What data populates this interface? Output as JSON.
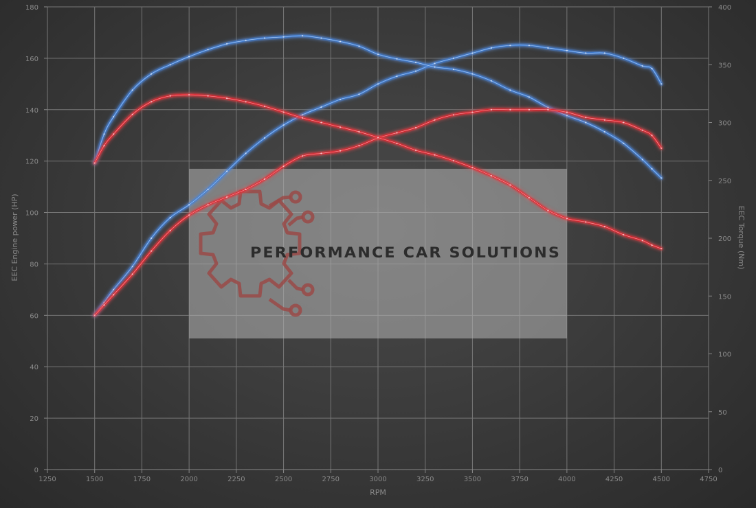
{
  "chart_data": {
    "type": "line",
    "xlabel": "RPM",
    "ylabel_left": "EEC Engine power (HP)",
    "ylabel_right": "EEC Torque (Nm)",
    "xlim": [
      1250,
      4750
    ],
    "ylim_left": [
      0,
      180
    ],
    "ylim_right": [
      0,
      400
    ],
    "x_ticks": [
      1250,
      1500,
      1750,
      2000,
      2250,
      2500,
      2750,
      3000,
      3250,
      3500,
      3750,
      4000,
      4250,
      4500,
      4750
    ],
    "y_left_ticks": [
      0,
      20,
      40,
      60,
      80,
      100,
      120,
      140,
      160,
      180
    ],
    "y_right_ticks": [
      0,
      50,
      100,
      150,
      200,
      250,
      300,
      350,
      400
    ],
    "grid": true,
    "series": [
      {
        "color": "#3f7fd6",
        "axis": "left",
        "points": [
          [
            1500,
            60
          ],
          [
            1550,
            65
          ],
          [
            1600,
            70
          ],
          [
            1700,
            79
          ],
          [
            1800,
            90
          ],
          [
            1900,
            98
          ],
          [
            2000,
            103
          ],
          [
            2100,
            109
          ],
          [
            2200,
            116
          ],
          [
            2300,
            123
          ],
          [
            2400,
            129
          ],
          [
            2500,
            134
          ],
          [
            2600,
            138
          ],
          [
            2700,
            141
          ],
          [
            2800,
            144
          ],
          [
            2900,
            146
          ],
          [
            3000,
            150
          ],
          [
            3100,
            153
          ],
          [
            3200,
            155
          ],
          [
            3300,
            158
          ],
          [
            3400,
            160
          ],
          [
            3500,
            162
          ],
          [
            3600,
            164
          ],
          [
            3700,
            165
          ],
          [
            3800,
            165
          ],
          [
            3900,
            164
          ],
          [
            4000,
            163
          ],
          [
            4100,
            162
          ],
          [
            4200,
            162
          ],
          [
            4300,
            160
          ],
          [
            4400,
            157
          ],
          [
            4450,
            156
          ],
          [
            4500,
            150
          ]
        ]
      },
      {
        "color": "#3f7fd6",
        "axis": "right",
        "points": [
          [
            1500,
            265
          ],
          [
            1550,
            290
          ],
          [
            1600,
            305
          ],
          [
            1700,
            328
          ],
          [
            1800,
            342
          ],
          [
            1900,
            350
          ],
          [
            2000,
            357
          ],
          [
            2100,
            363
          ],
          [
            2200,
            368
          ],
          [
            2300,
            371
          ],
          [
            2400,
            373
          ],
          [
            2500,
            374
          ],
          [
            2600,
            375
          ],
          [
            2700,
            373
          ],
          [
            2800,
            370
          ],
          [
            2900,
            366
          ],
          [
            3000,
            359
          ],
          [
            3100,
            355
          ],
          [
            3200,
            352
          ],
          [
            3300,
            348
          ],
          [
            3400,
            346
          ],
          [
            3500,
            342
          ],
          [
            3600,
            336
          ],
          [
            3700,
            328
          ],
          [
            3800,
            322
          ],
          [
            3900,
            313
          ],
          [
            4000,
            306
          ],
          [
            4100,
            300
          ],
          [
            4200,
            292
          ],
          [
            4300,
            282
          ],
          [
            4400,
            268
          ],
          [
            4450,
            260
          ],
          [
            4500,
            252
          ]
        ]
      },
      {
        "color": "#e0242d",
        "axis": "left",
        "points": [
          [
            1500,
            60
          ],
          [
            1550,
            64
          ],
          [
            1600,
            68
          ],
          [
            1700,
            76
          ],
          [
            1800,
            85
          ],
          [
            1900,
            93
          ],
          [
            2000,
            99
          ],
          [
            2100,
            103
          ],
          [
            2200,
            106
          ],
          [
            2300,
            109
          ],
          [
            2400,
            113
          ],
          [
            2500,
            118
          ],
          [
            2600,
            122
          ],
          [
            2700,
            123
          ],
          [
            2800,
            124
          ],
          [
            2900,
            126
          ],
          [
            3000,
            129
          ],
          [
            3100,
            131
          ],
          [
            3200,
            133
          ],
          [
            3300,
            136
          ],
          [
            3400,
            138
          ],
          [
            3500,
            139
          ],
          [
            3600,
            140
          ],
          [
            3700,
            140
          ],
          [
            3800,
            140
          ],
          [
            3900,
            140
          ],
          [
            4000,
            139
          ],
          [
            4100,
            137
          ],
          [
            4200,
            136
          ],
          [
            4300,
            135
          ],
          [
            4400,
            132
          ],
          [
            4450,
            130
          ],
          [
            4500,
            125
          ]
        ]
      },
      {
        "color": "#e0242d",
        "axis": "right",
        "points": [
          [
            1500,
            265
          ],
          [
            1550,
            280
          ],
          [
            1600,
            290
          ],
          [
            1700,
            307
          ],
          [
            1800,
            318
          ],
          [
            1900,
            323
          ],
          [
            2000,
            324
          ],
          [
            2100,
            323
          ],
          [
            2200,
            321
          ],
          [
            2300,
            318
          ],
          [
            2400,
            314
          ],
          [
            2500,
            309
          ],
          [
            2600,
            304
          ],
          [
            2700,
            300
          ],
          [
            2800,
            296
          ],
          [
            2900,
            292
          ],
          [
            3000,
            287
          ],
          [
            3100,
            282
          ],
          [
            3200,
            276
          ],
          [
            3300,
            272
          ],
          [
            3400,
            267
          ],
          [
            3500,
            261
          ],
          [
            3600,
            254
          ],
          [
            3700,
            246
          ],
          [
            3800,
            235
          ],
          [
            3900,
            224
          ],
          [
            4000,
            217
          ],
          [
            4100,
            214
          ],
          [
            4200,
            210
          ],
          [
            4300,
            203
          ],
          [
            4400,
            198
          ],
          [
            4450,
            194
          ],
          [
            4500,
            191
          ]
        ]
      }
    ],
    "watermark": {
      "text": "PERFORMANCE CAR SOLUTIONS",
      "x_range": [
        2000,
        4000
      ],
      "y_range_left": [
        51,
        117
      ]
    }
  }
}
